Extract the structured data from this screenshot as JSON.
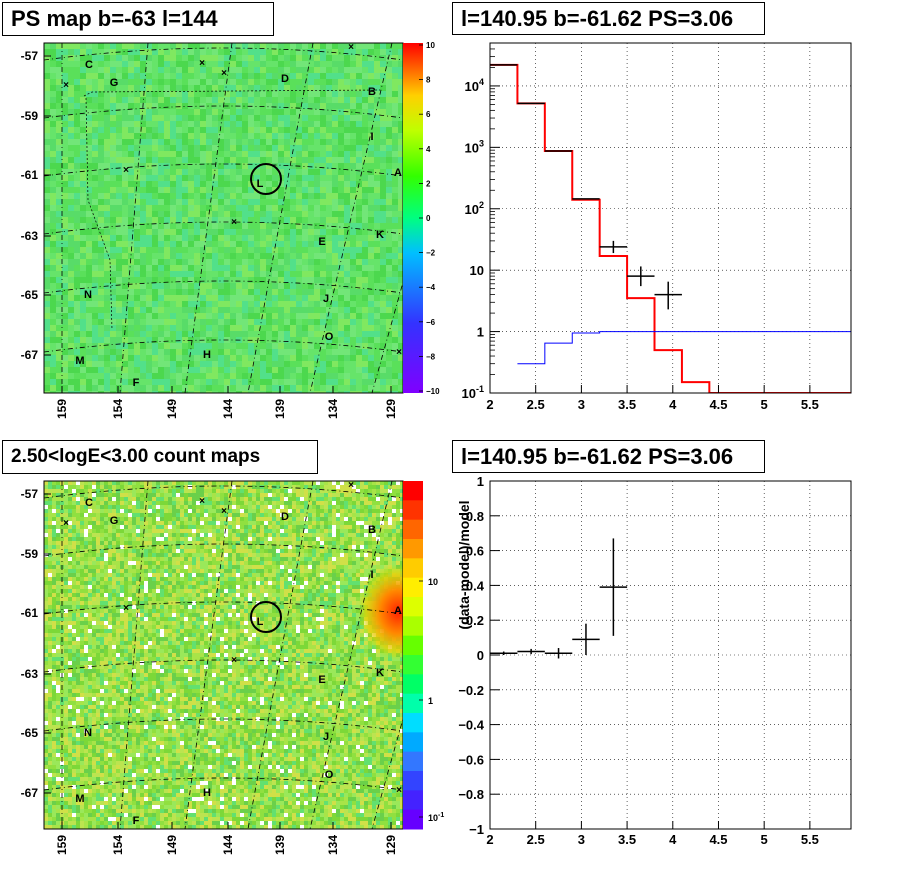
{
  "chart_data": [
    {
      "type": "heatmap",
      "title": "PS map b=-63 l=144",
      "x_ticks": [
        "159",
        "154",
        "149",
        "144",
        "139",
        "134",
        "129"
      ],
      "y_ticks": [
        "-57",
        "-59",
        "-61",
        "-63",
        "-65",
        "-67"
      ],
      "xlim": [
        160,
        128
      ],
      "ylim": [
        -68,
        -56.5
      ],
      "colorbar": {
        "ticks": [
          "10",
          "8",
          "6",
          "4",
          "2",
          "0",
          "−2",
          "−4",
          "−6",
          "−8",
          "−10"
        ],
        "range": [
          -10,
          10
        ]
      },
      "source_labels": [
        "C",
        "G",
        "D",
        "B",
        "I",
        "A",
        "L",
        "E",
        "K",
        "N",
        "J",
        "O",
        "M",
        "H",
        "F"
      ],
      "marker": {
        "l": 140.95,
        "b": -61.62
      }
    },
    {
      "type": "line",
      "title": "l=140.95 b=-61.62 PS=3.06",
      "x_ticks": [
        "2",
        "2.5",
        "3",
        "3.5",
        "4",
        "4.5",
        "5",
        "5.5"
      ],
      "y_ticks": [
        "1",
        "10",
        "10^2",
        "10^3",
        "10^4",
        "10^-1"
      ],
      "xlim": [
        2,
        5.95
      ],
      "ylim": [
        0.1,
        50000
      ],
      "yscale": "log",
      "grid": true,
      "series": [
        {
          "color": "#ff0000",
          "edges": [
            2.0,
            2.3,
            2.6,
            2.9,
            3.2,
            3.5,
            3.8,
            4.1,
            4.4,
            5.95
          ],
          "values": [
            22000,
            5200,
            870,
            140,
            17,
            3.5,
            0.5,
            0.15,
            0.1
          ]
        },
        {
          "color": "#0000ff",
          "edges": [
            2.3,
            2.6,
            2.9,
            3.2,
            5.95
          ],
          "values": [
            0.3,
            0.65,
            0.95,
            1.0
          ]
        },
        {
          "color": "#000000",
          "points": [
            {
              "x": 2.15,
              "y": 22000,
              "xerr": 0.15
            },
            {
              "x": 2.45,
              "y": 5200,
              "xerr": 0.15
            },
            {
              "x": 2.75,
              "y": 870,
              "xerr": 0.15
            },
            {
              "x": 3.05,
              "y": 145,
              "xerr": 0.15
            },
            {
              "x": 3.35,
              "y": 24,
              "xerr": 0.15,
              "ylo": 19,
              "yhi": 30
            },
            {
              "x": 3.65,
              "y": 8,
              "xerr": 0.15,
              "ylo": 5.5,
              "yhi": 11.5
            },
            {
              "x": 3.95,
              "y": 4,
              "xerr": 0.15,
              "ylo": 2.3,
              "yhi": 6.5
            }
          ]
        }
      ]
    },
    {
      "type": "heatmap",
      "title": "2.50<logE<3.00 count maps",
      "x_ticks": [
        "159",
        "154",
        "149",
        "144",
        "139",
        "134",
        "129"
      ],
      "y_ticks": [
        "-57",
        "-59",
        "-61",
        "-63",
        "-65",
        "-67"
      ],
      "colorbar": {
        "ticks": [
          "10",
          "1",
          "10^-1"
        ],
        "scale": "log"
      },
      "source_labels": [
        "C",
        "G",
        "D",
        "B",
        "I",
        "A",
        "L",
        "E",
        "K",
        "N",
        "J",
        "O",
        "M",
        "H",
        "F"
      ],
      "marker": {
        "l": 140.95,
        "b": -61.62
      }
    },
    {
      "type": "scatter",
      "title": "l=140.95 b=-61.62 PS=3.06",
      "ylabel": "(data-model)/model",
      "x_ticks": [
        "2",
        "2.5",
        "3",
        "3.5",
        "4",
        "4.5",
        "5",
        "5.5"
      ],
      "y_ticks": [
        "1",
        "0.8",
        "0.6",
        "0.4",
        "0.2",
        "0",
        "−0.2",
        "−0.4",
        "−0.6",
        "−0.8",
        "−1"
      ],
      "xlim": [
        2,
        5.95
      ],
      "ylim": [
        -1,
        1
      ],
      "grid": true,
      "points": [
        {
          "x": 2.15,
          "y": 0.01,
          "xerr": 0.15,
          "yerr": 0.01
        },
        {
          "x": 2.45,
          "y": 0.02,
          "xerr": 0.15,
          "yerr": 0.015
        },
        {
          "x": 2.75,
          "y": 0.01,
          "xerr": 0.15,
          "yerr": 0.03
        },
        {
          "x": 3.05,
          "y": 0.09,
          "xerr": 0.15,
          "yerr": 0.09
        },
        {
          "x": 3.35,
          "y": 0.39,
          "xerr": 0.15,
          "yerr": 0.28
        }
      ]
    }
  ]
}
